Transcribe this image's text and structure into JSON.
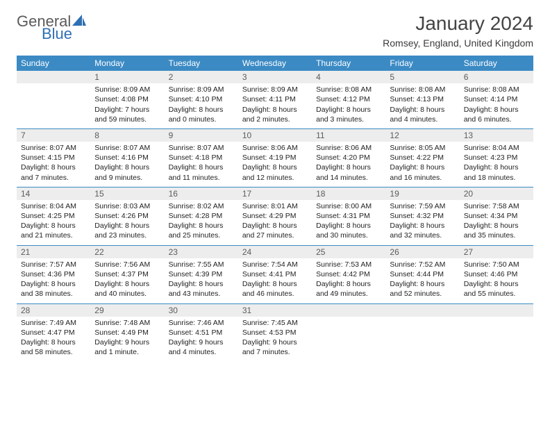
{
  "brand": {
    "part1": "General",
    "part2": "Blue"
  },
  "title": "January 2024",
  "location": "Romsey, England, United Kingdom",
  "header_bg": "#3b8ac4",
  "daynum_bg": "#ededed",
  "days": [
    "Sunday",
    "Monday",
    "Tuesday",
    "Wednesday",
    "Thursday",
    "Friday",
    "Saturday"
  ],
  "weeks": [
    [
      null,
      {
        "n": "1",
        "sr": "Sunrise: 8:09 AM",
        "ss": "Sunset: 4:08 PM",
        "dl": "Daylight: 7 hours and 59 minutes."
      },
      {
        "n": "2",
        "sr": "Sunrise: 8:09 AM",
        "ss": "Sunset: 4:10 PM",
        "dl": "Daylight: 8 hours and 0 minutes."
      },
      {
        "n": "3",
        "sr": "Sunrise: 8:09 AM",
        "ss": "Sunset: 4:11 PM",
        "dl": "Daylight: 8 hours and 2 minutes."
      },
      {
        "n": "4",
        "sr": "Sunrise: 8:08 AM",
        "ss": "Sunset: 4:12 PM",
        "dl": "Daylight: 8 hours and 3 minutes."
      },
      {
        "n": "5",
        "sr": "Sunrise: 8:08 AM",
        "ss": "Sunset: 4:13 PM",
        "dl": "Daylight: 8 hours and 4 minutes."
      },
      {
        "n": "6",
        "sr": "Sunrise: 8:08 AM",
        "ss": "Sunset: 4:14 PM",
        "dl": "Daylight: 8 hours and 6 minutes."
      }
    ],
    [
      {
        "n": "7",
        "sr": "Sunrise: 8:07 AM",
        "ss": "Sunset: 4:15 PM",
        "dl": "Daylight: 8 hours and 7 minutes."
      },
      {
        "n": "8",
        "sr": "Sunrise: 8:07 AM",
        "ss": "Sunset: 4:16 PM",
        "dl": "Daylight: 8 hours and 9 minutes."
      },
      {
        "n": "9",
        "sr": "Sunrise: 8:07 AM",
        "ss": "Sunset: 4:18 PM",
        "dl": "Daylight: 8 hours and 11 minutes."
      },
      {
        "n": "10",
        "sr": "Sunrise: 8:06 AM",
        "ss": "Sunset: 4:19 PM",
        "dl": "Daylight: 8 hours and 12 minutes."
      },
      {
        "n": "11",
        "sr": "Sunrise: 8:06 AM",
        "ss": "Sunset: 4:20 PM",
        "dl": "Daylight: 8 hours and 14 minutes."
      },
      {
        "n": "12",
        "sr": "Sunrise: 8:05 AM",
        "ss": "Sunset: 4:22 PM",
        "dl": "Daylight: 8 hours and 16 minutes."
      },
      {
        "n": "13",
        "sr": "Sunrise: 8:04 AM",
        "ss": "Sunset: 4:23 PM",
        "dl": "Daylight: 8 hours and 18 minutes."
      }
    ],
    [
      {
        "n": "14",
        "sr": "Sunrise: 8:04 AM",
        "ss": "Sunset: 4:25 PM",
        "dl": "Daylight: 8 hours and 21 minutes."
      },
      {
        "n": "15",
        "sr": "Sunrise: 8:03 AM",
        "ss": "Sunset: 4:26 PM",
        "dl": "Daylight: 8 hours and 23 minutes."
      },
      {
        "n": "16",
        "sr": "Sunrise: 8:02 AM",
        "ss": "Sunset: 4:28 PM",
        "dl": "Daylight: 8 hours and 25 minutes."
      },
      {
        "n": "17",
        "sr": "Sunrise: 8:01 AM",
        "ss": "Sunset: 4:29 PM",
        "dl": "Daylight: 8 hours and 27 minutes."
      },
      {
        "n": "18",
        "sr": "Sunrise: 8:00 AM",
        "ss": "Sunset: 4:31 PM",
        "dl": "Daylight: 8 hours and 30 minutes."
      },
      {
        "n": "19",
        "sr": "Sunrise: 7:59 AM",
        "ss": "Sunset: 4:32 PM",
        "dl": "Daylight: 8 hours and 32 minutes."
      },
      {
        "n": "20",
        "sr": "Sunrise: 7:58 AM",
        "ss": "Sunset: 4:34 PM",
        "dl": "Daylight: 8 hours and 35 minutes."
      }
    ],
    [
      {
        "n": "21",
        "sr": "Sunrise: 7:57 AM",
        "ss": "Sunset: 4:36 PM",
        "dl": "Daylight: 8 hours and 38 minutes."
      },
      {
        "n": "22",
        "sr": "Sunrise: 7:56 AM",
        "ss": "Sunset: 4:37 PM",
        "dl": "Daylight: 8 hours and 40 minutes."
      },
      {
        "n": "23",
        "sr": "Sunrise: 7:55 AM",
        "ss": "Sunset: 4:39 PM",
        "dl": "Daylight: 8 hours and 43 minutes."
      },
      {
        "n": "24",
        "sr": "Sunrise: 7:54 AM",
        "ss": "Sunset: 4:41 PM",
        "dl": "Daylight: 8 hours and 46 minutes."
      },
      {
        "n": "25",
        "sr": "Sunrise: 7:53 AM",
        "ss": "Sunset: 4:42 PM",
        "dl": "Daylight: 8 hours and 49 minutes."
      },
      {
        "n": "26",
        "sr": "Sunrise: 7:52 AM",
        "ss": "Sunset: 4:44 PM",
        "dl": "Daylight: 8 hours and 52 minutes."
      },
      {
        "n": "27",
        "sr": "Sunrise: 7:50 AM",
        "ss": "Sunset: 4:46 PM",
        "dl": "Daylight: 8 hours and 55 minutes."
      }
    ],
    [
      {
        "n": "28",
        "sr": "Sunrise: 7:49 AM",
        "ss": "Sunset: 4:47 PM",
        "dl": "Daylight: 8 hours and 58 minutes."
      },
      {
        "n": "29",
        "sr": "Sunrise: 7:48 AM",
        "ss": "Sunset: 4:49 PM",
        "dl": "Daylight: 9 hours and 1 minute."
      },
      {
        "n": "30",
        "sr": "Sunrise: 7:46 AM",
        "ss": "Sunset: 4:51 PM",
        "dl": "Daylight: 9 hours and 4 minutes."
      },
      {
        "n": "31",
        "sr": "Sunrise: 7:45 AM",
        "ss": "Sunset: 4:53 PM",
        "dl": "Daylight: 9 hours and 7 minutes."
      },
      null,
      null,
      null
    ]
  ]
}
